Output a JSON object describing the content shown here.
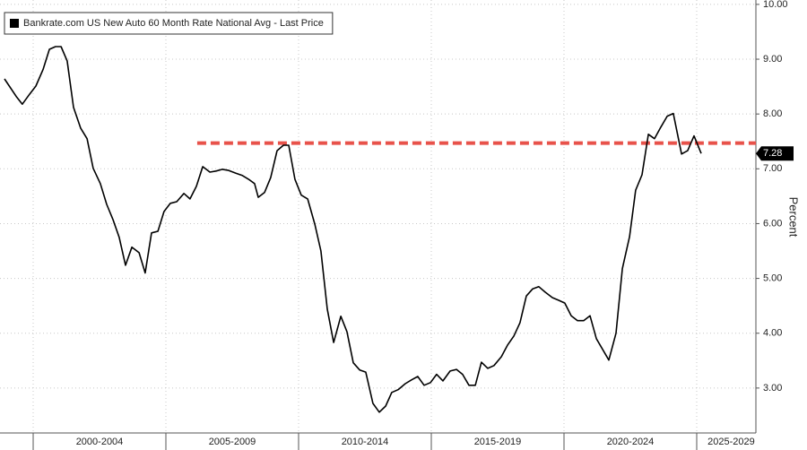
{
  "chart_data": {
    "type": "line",
    "y_label": "Percent",
    "series": [
      {
        "name": "Bankrate.com US New Auto 60 Month Rate National Avg - Last Price",
        "color": "#000000",
        "x": [
          1998.92,
          1999.36,
          1999.59,
          1999.86,
          2000.1,
          2000.37,
          2000.61,
          2000.84,
          2001.05,
          2001.28,
          2001.52,
          2001.79,
          2002.03,
          2002.26,
          2002.53,
          2002.77,
          2003.01,
          2003.24,
          2003.48,
          2003.72,
          2003.99,
          2004.22,
          2004.46,
          2004.7,
          2004.93,
          2005.17,
          2005.41,
          2005.68,
          2005.91,
          2006.15,
          2006.39,
          2006.66,
          2006.89,
          2007.13,
          2007.36,
          2007.64,
          2007.87,
          2008.11,
          2008.34,
          2008.48,
          2008.72,
          2008.95,
          2009.19,
          2009.43,
          2009.63,
          2009.86,
          2010.1,
          2010.34,
          2010.61,
          2010.84,
          2011.08,
          2011.32,
          2011.59,
          2011.82,
          2012.06,
          2012.3,
          2012.53,
          2012.8,
          2013.04,
          2013.28,
          2013.51,
          2013.75,
          2014.02,
          2014.26,
          2014.49,
          2014.73,
          2014.97,
          2015.2,
          2015.44,
          2015.71,
          2015.95,
          2016.18,
          2016.42,
          2016.66,
          2016.89,
          2017.13,
          2017.36,
          2017.64,
          2017.87,
          2018.11,
          2018.34,
          2018.58,
          2018.82,
          2019.05,
          2019.29,
          2019.56,
          2019.8,
          2020.03,
          2020.27,
          2020.51,
          2020.74,
          2020.98,
          2021.22,
          2021.69,
          2021.96,
          2022.2,
          2022.47,
          2022.7,
          2022.94,
          2023.18,
          2023.41,
          2023.65,
          2023.89,
          2024.12,
          2024.43,
          2024.66,
          2024.9,
          2025.17
        ],
        "values": [
          8.64,
          8.32,
          8.18,
          8.36,
          8.51,
          8.81,
          9.18,
          9.23,
          9.23,
          8.97,
          8.12,
          7.74,
          7.55,
          7.01,
          6.73,
          6.35,
          6.07,
          5.75,
          5.24,
          5.57,
          5.47,
          5.1,
          5.83,
          5.86,
          6.22,
          6.37,
          6.4,
          6.55,
          6.45,
          6.68,
          7.04,
          6.94,
          6.96,
          6.99,
          6.97,
          6.92,
          6.88,
          6.81,
          6.73,
          6.48,
          6.57,
          6.84,
          7.33,
          7.43,
          7.43,
          6.81,
          6.52,
          6.45,
          5.99,
          5.5,
          4.44,
          3.83,
          4.31,
          4.03,
          3.46,
          3.33,
          3.29,
          2.72,
          2.56,
          2.67,
          2.92,
          2.97,
          3.08,
          3.15,
          3.21,
          3.05,
          3.1,
          3.25,
          3.13,
          3.31,
          3.34,
          3.25,
          3.05,
          3.05,
          3.47,
          3.36,
          3.41,
          3.57,
          3.78,
          3.95,
          4.19,
          4.68,
          4.81,
          4.85,
          4.75,
          4.65,
          4.6,
          4.55,
          4.32,
          4.23,
          4.23,
          4.32,
          3.9,
          3.51,
          4.0,
          5.18,
          5.76,
          6.61,
          6.89,
          7.63,
          7.55,
          7.76,
          7.96,
          8.01,
          7.27,
          7.33,
          7.6,
          7.28
        ]
      }
    ],
    "reference_line": {
      "value": 7.47,
      "x_start": 2006.18,
      "color": "#e8524a"
    },
    "xlim": [
      1998.75,
      2027.23
    ],
    "ylim": [
      2.18,
      10.08
    ],
    "yticks": [
      {
        "value": 3,
        "label": "3.00"
      },
      {
        "value": 4,
        "label": "4.00"
      },
      {
        "value": 5,
        "label": "5.00"
      },
      {
        "value": 6,
        "label": "6.00"
      },
      {
        "value": 7,
        "label": "7.00"
      },
      {
        "value": 8,
        "label": "8.00"
      },
      {
        "value": 9,
        "label": "9.00"
      },
      {
        "value": 10,
        "label": "10.00"
      }
    ],
    "xticks": [
      {
        "value": 2002.5,
        "label": "2000-2004"
      },
      {
        "value": 2007.5,
        "label": "2005-2009"
      },
      {
        "value": 2012.5,
        "label": "2010-2014"
      },
      {
        "value": 2017.5,
        "label": "2015-2019"
      },
      {
        "value": 2022.5,
        "label": "2020-2024"
      },
      {
        "value": 2026.3,
        "label": "2025-2029"
      }
    ],
    "x_period_edges": [
      2000,
      2005,
      2010,
      2015,
      2020,
      2025
    ],
    "grid": true
  }
}
